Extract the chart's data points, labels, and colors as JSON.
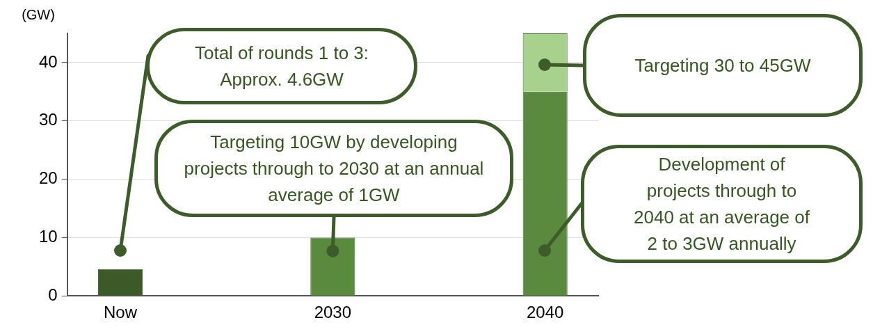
{
  "chart_data": {
    "type": "bar",
    "stacked": true,
    "ylabel": "(GW)",
    "categories": [
      "Now",
      null,
      "2030",
      null,
      "2040"
    ],
    "series": [
      {
        "colors": [
          "#3b5a28",
          null,
          "#5a8a3e",
          null,
          "#5a8a3e"
        ],
        "color": "#5a8a3e",
        "values": [
          4.6,
          null,
          10,
          null,
          35
        ]
      },
      {
        "color": "#a9d18e",
        "values": [
          null,
          null,
          null,
          null,
          10
        ]
      }
    ],
    "ylim": [
      0,
      45
    ],
    "yticks": [
      0,
      10,
      20,
      30,
      40
    ],
    "grid": "y",
    "legend": false,
    "annotations": [
      "Total of rounds 1 to 3: Approx. 4.6GW",
      {
        "text": "Targeting 10GW by developing projects through to 2030 at an annual average of 1GW",
        "x": "2030",
        "y": 7.7
      },
      "Targeting 30 to 45GW",
      "Development of projects through to 2040 at an average of 2 to 3GW annually"
    ]
  }
}
